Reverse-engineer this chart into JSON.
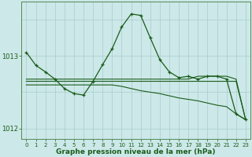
{
  "background_color": "#cce8e8",
  "grid_color": "#b0d8d8",
  "line_color": "#1a5c1a",
  "xlabel": "Graphe pression niveau de la mer (hPa)",
  "hours": [
    0,
    1,
    2,
    3,
    4,
    5,
    6,
    7,
    8,
    9,
    10,
    11,
    12,
    13,
    14,
    15,
    16,
    17,
    18,
    19,
    20,
    21,
    22,
    23
  ],
  "main_line": [
    1013.05,
    1012.87,
    1012.78,
    1012.68,
    1012.55,
    1012.48,
    1012.46,
    1012.65,
    1012.88,
    1013.1,
    1013.4,
    1013.58,
    1013.56,
    1013.25,
    1012.95,
    1012.78,
    1012.7,
    1012.72,
    1012.68,
    1012.72,
    1012.72,
    1012.68,
    1012.2,
    1012.12
  ],
  "upper_flat": [
    1012.68,
    1012.68,
    1012.68,
    1012.68,
    1012.68,
    1012.68,
    1012.68,
    1012.68,
    1012.68,
    1012.68,
    1012.68,
    1012.68,
    1012.68,
    1012.68,
    1012.68,
    1012.68,
    1012.68,
    1012.68,
    1012.72,
    1012.72,
    1012.72,
    1012.72,
    1012.68,
    1012.12
  ],
  "mid_flat": [
    1012.65,
    1012.65,
    1012.65,
    1012.65,
    1012.65,
    1012.65,
    1012.65,
    1012.65,
    1012.65,
    1012.65,
    1012.65,
    1012.65,
    1012.65,
    1012.65,
    1012.65,
    1012.65,
    1012.65,
    1012.65,
    1012.65,
    1012.65,
    1012.65,
    1012.65,
    1012.65,
    1012.12
  ],
  "lower_flat": [
    1012.6,
    1012.6,
    1012.6,
    1012.6,
    1012.6,
    1012.6,
    1012.6,
    1012.6,
    1012.6,
    1012.6,
    1012.58,
    1012.55,
    1012.52,
    1012.5,
    1012.48,
    1012.45,
    1012.42,
    1012.4,
    1012.38,
    1012.35,
    1012.32,
    1012.3,
    1012.2,
    1012.12
  ],
  "ylim": [
    1011.85,
    1013.75
  ],
  "yticks": [
    1012.0,
    1013.0
  ],
  "ytick_labels": [
    "1012",
    "1013"
  ]
}
